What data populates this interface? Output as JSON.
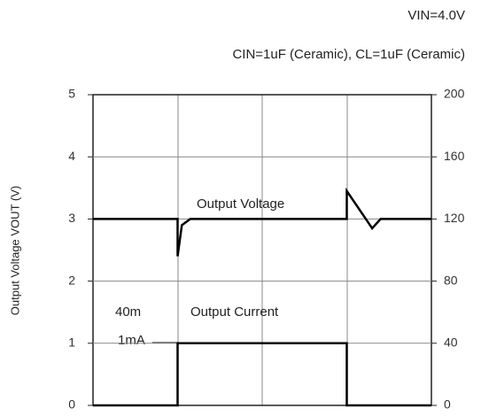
{
  "chart_data": {
    "type": "line",
    "title": "VIN=4.0V",
    "subtitle": "CIN=1uF (Ceramic), CL=1uF (Ceramic)",
    "ylabel": "Output Voltage VOUT (V)",
    "xlim": [
      0,
      4
    ],
    "ylim": [
      0,
      5
    ],
    "yticks": [
      0,
      1,
      2,
      3,
      4,
      5
    ],
    "y2lim": [
      0,
      200
    ],
    "y2ticks": [
      0,
      40,
      80,
      120,
      160,
      200
    ],
    "grid": true,
    "annotations": [
      "40m",
      "1mA"
    ],
    "series": [
      {
        "name": "Output Voltage",
        "color": "#000000",
        "x": [
          0,
          1.0,
          1.0,
          1.05,
          1.15,
          3.0,
          3.0,
          3.3,
          3.4,
          4
        ],
        "values": [
          3.0,
          3.0,
          2.4,
          2.9,
          3.0,
          3.0,
          3.45,
          2.85,
          3.0,
          3.0
        ]
      },
      {
        "name": "Output Current",
        "color": "#000000",
        "axis": "y2",
        "x": [
          0,
          1.0,
          1.0,
          3.0,
          3.0,
          4
        ],
        "values": [
          0,
          0,
          40,
          40,
          0,
          0
        ]
      }
    ]
  }
}
